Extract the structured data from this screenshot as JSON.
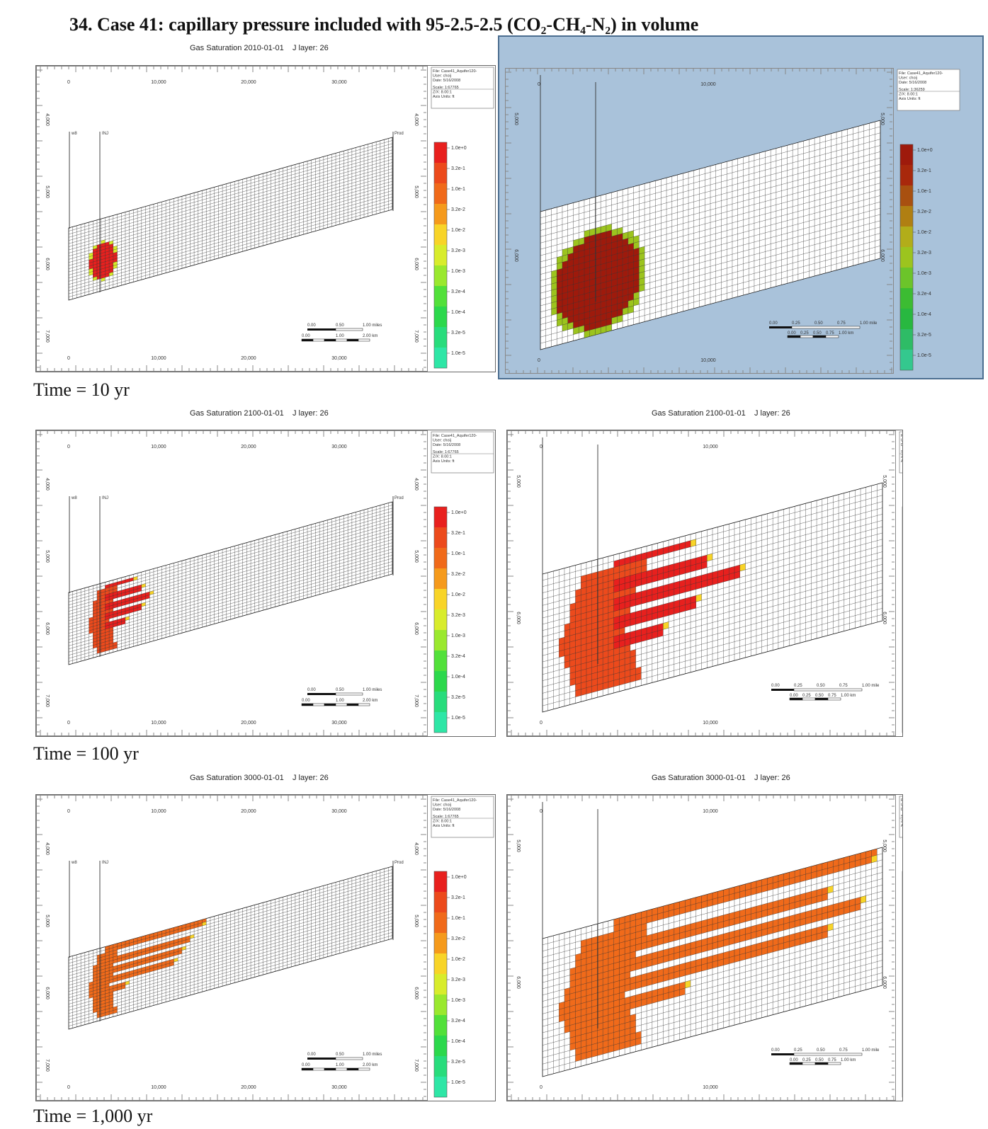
{
  "heading": "34.  Case 41: capillary pressure included with 95-2.5-2.5 (CO₂-CH₄-N₂) in volume",
  "rows": [
    {
      "time_label": "Time = 10 yr",
      "title_date": "Gas Saturation 2010-01-01",
      "title_layer": "J layer: 26",
      "spread": 0
    },
    {
      "time_label": "Time = 100 yr",
      "title_date": "Gas Saturation 2100-01-01",
      "title_layer": "J layer: 26",
      "spread": 1
    },
    {
      "time_label": "Time = 1,000 yr",
      "title_date": "Gas Saturation 3000-01-01",
      "title_layer": "J layer: 26",
      "spread": 2
    }
  ],
  "info_full": [
    "File: Case41_Aquifer120-",
    "User: choij",
    "Date: 5/16/2008",
    "Scale: 1:67765",
    "Z/X: 8.00:1",
    "Axis Units: ft"
  ],
  "info_zoom": [
    "File: Case41_Aquifer120-",
    "User: choij",
    "Date: 5/16/2008",
    "Scale: 1:36259",
    "Z/X: 8.00:1",
    "Axis Units: ft"
  ],
  "legend": {
    "labels": [
      "1.0e+0",
      "3.2e-1",
      "1.0e-1",
      "3.2e-2",
      "1.0e-2",
      "3.2e-3",
      "1.0e-3",
      "3.2e-4",
      "1.0e-4",
      "3.2e-5",
      "1.0e-5"
    ],
    "colors": [
      "#e8201e",
      "#ec4a1c",
      "#f06a1a",
      "#f59a1c",
      "#f8d428",
      "#d8ec2c",
      "#9ae82e",
      "#52e03a",
      "#2cd84c",
      "#28dc7c",
      "#2ee6a6"
    ],
    "colors_highlighted": [
      "#9e1a0c",
      "#a8280c",
      "#a85010",
      "#b07f12",
      "#b2ad1a",
      "#9cc41e",
      "#6cc42a",
      "#3cbc32",
      "#28b840",
      "#2ebc66",
      "#34c88e"
    ]
  },
  "full_axis": {
    "x_ticks": [
      "0",
      "10,000",
      "20,000",
      "30,000"
    ],
    "y_ticks": [
      "4,000",
      "5,000",
      "6,000",
      "7,000"
    ],
    "well_labels": [
      "w8",
      "INJ",
      "Prod"
    ],
    "scale_miles": [
      "0.00",
      "0.50",
      "1.00 miles"
    ],
    "scale_km": [
      "0.00",
      "1.00",
      "2.00 km"
    ]
  },
  "zoom_axis": {
    "x_ticks": [
      "0",
      "10,000"
    ],
    "y_ticks": [
      "5,000",
      "6,000"
    ],
    "scale_miles": [
      "0.00",
      "0.25",
      "0.50",
      "0.75",
      "1.00 mile"
    ],
    "scale_km": [
      "0.00",
      "0.25",
      "0.50",
      "0.75",
      "1.00 km"
    ]
  }
}
